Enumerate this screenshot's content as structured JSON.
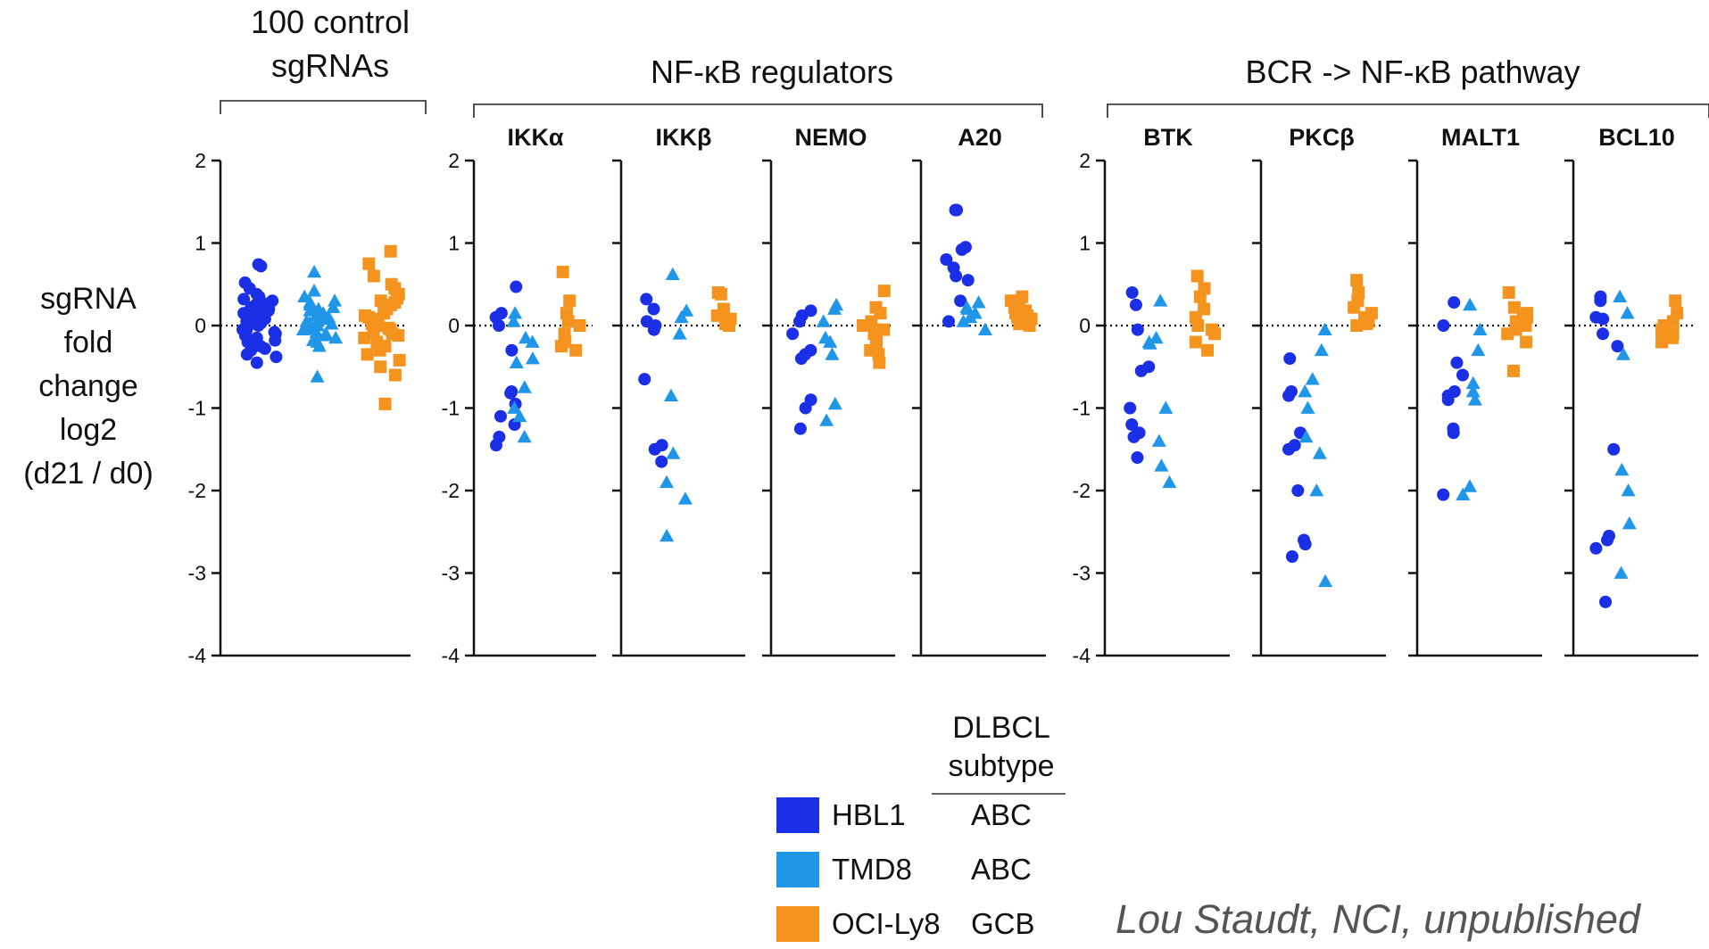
{
  "chart_data": {
    "type": "scatter",
    "ylabel_lines": [
      "sgRNA",
      "fold",
      "change",
      "log2",
      "(d21 / d0)"
    ],
    "yticks": [
      2,
      1,
      0,
      -1,
      -2,
      -3,
      -4
    ],
    "ylim": [
      -4,
      2
    ],
    "groups": [
      {
        "title_lines": [
          "100 control",
          "sgRNAs"
        ]
      },
      {
        "title_lines": [
          "NF-κB regulators"
        ]
      },
      {
        "title_lines": [
          "BCR -> NF-κB pathway"
        ]
      }
    ],
    "panels": [
      {
        "gene": "",
        "group": 0,
        "hbl1": [
          0.74,
          0.72,
          0.52,
          0.45,
          0.38,
          0.35,
          0.32,
          0.3,
          0.28,
          0.25,
          0.22,
          0.2,
          0.18,
          0.15,
          0.12,
          0.1,
          0.08,
          0.05,
          0.03,
          0.0,
          -0.02,
          -0.05,
          -0.08,
          -0.1,
          -0.12,
          -0.15,
          -0.18,
          -0.2,
          -0.22,
          -0.25,
          -0.28,
          -0.3,
          -0.35,
          -0.38,
          -0.45,
          0.02,
          0.06,
          0.12,
          -0.06,
          0.18
        ],
        "tmd8": [
          0.65,
          0.42,
          0.35,
          0.3,
          0.25,
          0.22,
          0.2,
          0.18,
          0.15,
          0.12,
          0.1,
          0.08,
          0.05,
          0.03,
          0.0,
          -0.02,
          -0.05,
          -0.08,
          -0.1,
          -0.12,
          -0.15,
          -0.18,
          -0.2,
          -0.25,
          -0.62,
          0.02,
          0.06,
          0.14,
          -0.04,
          0.28
        ],
        "ocily8": [
          0.9,
          0.75,
          0.6,
          0.5,
          0.45,
          0.38,
          0.33,
          0.28,
          0.25,
          0.2,
          0.15,
          0.12,
          0.08,
          0.05,
          0.02,
          0.0,
          -0.03,
          -0.05,
          -0.08,
          -0.12,
          -0.15,
          -0.2,
          -0.25,
          -0.3,
          -0.35,
          -0.42,
          -0.5,
          -0.6,
          -0.95,
          0.3,
          0.1,
          -0.1
        ]
      },
      {
        "gene": "IKKα",
        "group": 1,
        "hbl1": [
          0.47,
          0.15,
          0.1,
          0.0,
          -0.3,
          -0.8,
          -0.82,
          -0.95,
          -1.1,
          -1.2,
          -1.35,
          -1.45
        ],
        "tmd8": [
          0.15,
          0.05,
          -0.15,
          -0.2,
          -0.4,
          -0.45,
          -0.75,
          -1.0,
          -1.1,
          -1.35
        ],
        "ocily8": [
          0.65,
          0.3,
          0.15,
          0.05,
          0.0,
          -0.1,
          -0.2,
          -0.25,
          -0.3
        ]
      },
      {
        "gene": "IKKβ",
        "group": 1,
        "hbl1": [
          0.32,
          0.2,
          0.05,
          0.0,
          -0.05,
          -0.65,
          -1.45,
          -1.5,
          -1.65
        ],
        "tmd8": [
          0.62,
          0.18,
          0.1,
          -0.1,
          -0.85,
          -1.55,
          -1.9,
          -2.1,
          -2.55
        ],
        "ocily8": [
          0.4,
          0.38,
          0.2,
          0.12,
          0.08,
          0.05,
          0.02,
          0.0
        ]
      },
      {
        "gene": "NEMO",
        "group": 1,
        "hbl1": [
          0.18,
          0.12,
          0.05,
          -0.1,
          -0.3,
          -0.35,
          -0.4,
          -0.9,
          -1.0,
          -1.25
        ],
        "tmd8": [
          0.25,
          0.2,
          0.05,
          -0.15,
          -0.2,
          -0.35,
          -0.95,
          -1.15
        ],
        "ocily8": [
          0.42,
          0.22,
          0.15,
          0.05,
          0.0,
          -0.05,
          -0.1,
          -0.2,
          -0.3,
          -0.35,
          -0.45
        ]
      },
      {
        "gene": "A20",
        "group": 1,
        "hbl1": [
          1.4,
          1.4,
          0.95,
          0.92,
          0.8,
          0.7,
          0.6,
          0.55,
          0.3,
          0.05
        ],
        "tmd8": [
          0.28,
          0.22,
          0.2,
          0.15,
          0.1,
          0.05,
          -0.05
        ],
        "ocily8": [
          0.35,
          0.3,
          0.25,
          0.22,
          0.18,
          0.15,
          0.12,
          0.1,
          0.08,
          0.05,
          0.02,
          0.0
        ]
      },
      {
        "gene": "BTK",
        "group": 2,
        "hbl1": [
          0.4,
          0.25,
          -0.05,
          -0.5,
          -0.55,
          -1.0,
          -1.2,
          -1.3,
          -1.35,
          -1.6
        ],
        "tmd8": [
          0.3,
          -0.15,
          -0.2,
          -0.22,
          -1.0,
          -1.4,
          -1.7,
          -1.9
        ],
        "ocily8": [
          0.6,
          0.45,
          0.35,
          0.2,
          0.1,
          0.0,
          -0.05,
          -0.1,
          -0.2,
          -0.3
        ]
      },
      {
        "gene": "PKCβ",
        "group": 2,
        "hbl1": [
          -0.4,
          -0.8,
          -0.85,
          -1.3,
          -1.45,
          -1.5,
          -2.0,
          -2.6,
          -2.65,
          -2.8
        ],
        "tmd8": [
          -0.05,
          -0.3,
          -0.65,
          -0.8,
          -1.0,
          -1.35,
          -1.55,
          -2.0,
          -3.1
        ],
        "ocily8": [
          0.55,
          0.4,
          0.3,
          0.22,
          0.15,
          0.1,
          0.05,
          0.02,
          0.0
        ]
      },
      {
        "gene": "MALT1",
        "group": 2,
        "hbl1": [
          0.28,
          0.0,
          -0.45,
          -0.6,
          -0.8,
          -0.85,
          -0.9,
          -1.25,
          -1.3,
          -2.05
        ],
        "tmd8": [
          0.25,
          -0.05,
          -0.3,
          -0.7,
          -0.8,
          -0.9,
          -1.95,
          -2.05
        ],
        "ocily8": [
          0.4,
          0.22,
          0.15,
          0.12,
          0.1,
          0.05,
          0.0,
          -0.05,
          -0.1,
          -0.2,
          -0.55
        ]
      },
      {
        "gene": "BCL10",
        "group": 2,
        "hbl1": [
          0.35,
          0.3,
          0.1,
          0.08,
          -0.1,
          -0.25,
          -1.5,
          -2.55,
          -2.6,
          -2.7,
          -3.35
        ],
        "tmd8": [
          0.35,
          0.15,
          -0.35,
          -1.75,
          -2.0,
          -2.4,
          -3.0
        ],
        "ocily8": [
          0.3,
          0.15,
          0.05,
          0.0,
          -0.05,
          -0.1,
          -0.15,
          -0.2
        ]
      }
    ],
    "colors": {
      "hbl1": "#1A2FE6",
      "tmd8": "#1F96E8",
      "ocily8": "#F4931E"
    }
  },
  "legend": {
    "header_lines": [
      "DLBCL",
      "subtype"
    ],
    "entries": [
      {
        "name": "HBL1",
        "subtype": "ABC"
      },
      {
        "name": "TMD8",
        "subtype": "ABC"
      },
      {
        "name": "OCI-Ly8",
        "subtype": "GCB"
      }
    ]
  },
  "credit": "Lou Staudt, NCI, unpublished"
}
